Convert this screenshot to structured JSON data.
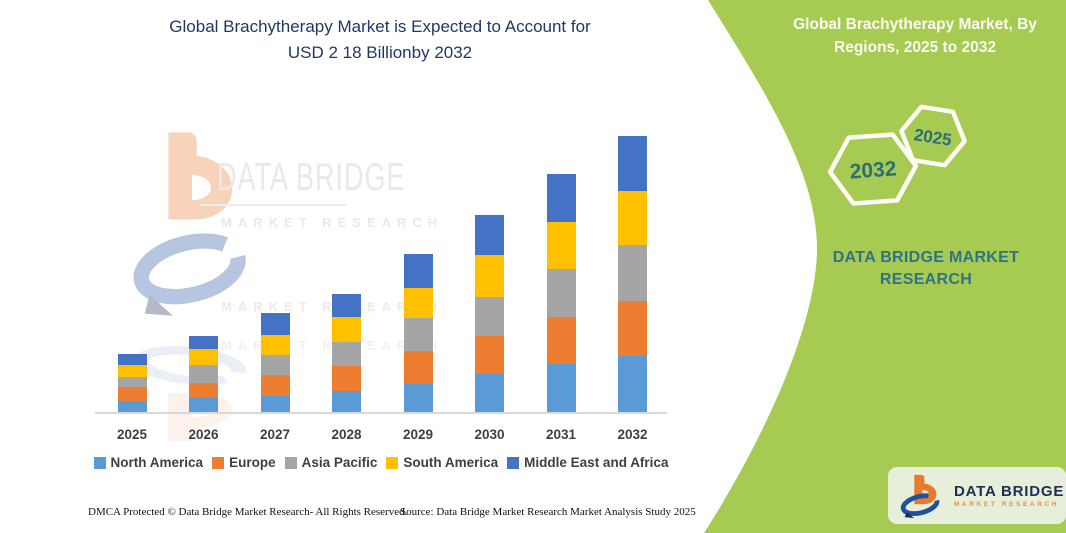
{
  "left": {
    "title_line1": "Global Brachytherapy Market is Expected to Account for",
    "title_line2": "USD 2 18 Billionby 2032",
    "footer_left": "DMCA Protected © Data Bridge Market Research- All Rights Reserved.",
    "footer_right": "Source: Data Bridge Market Research Market Analysis Study 2025"
  },
  "watermark": {
    "brand": "DATA BRIDGE",
    "sub": "MARKET RESEARCH",
    "reflect_row": "MARKET RESEARCH"
  },
  "chart_data": {
    "type": "bar",
    "stacked": true,
    "title": "Global Brachytherapy Market is Expected to Account for USD 2 18 Billionby 2032",
    "unit": "USD Billion",
    "xlabel": "",
    "ylabel": "",
    "ylim": [
      0,
      2.3
    ],
    "grid": false,
    "legend_position": "bottom",
    "categories": [
      "2025",
      "2026",
      "2027",
      "2028",
      "2029",
      "2030",
      "2031",
      "2032"
    ],
    "series": [
      {
        "name": "North America",
        "color": "#5B9BD5",
        "values": [
          0.09,
          0.12,
          0.13,
          0.17,
          0.22,
          0.3,
          0.38,
          0.44
        ]
      },
      {
        "name": "Europe",
        "color": "#ED7D31",
        "values": [
          0.11,
          0.11,
          0.16,
          0.19,
          0.26,
          0.3,
          0.37,
          0.44
        ]
      },
      {
        "name": "Asia Pacific",
        "color": "#A5A5A5",
        "values": [
          0.08,
          0.14,
          0.16,
          0.19,
          0.26,
          0.31,
          0.38,
          0.44
        ]
      },
      {
        "name": "South America",
        "color": "#FFC000",
        "values": [
          0.09,
          0.13,
          0.16,
          0.2,
          0.24,
          0.33,
          0.37,
          0.43
        ]
      },
      {
        "name": "Middle East and Africa",
        "color": "#4472C4",
        "values": [
          0.09,
          0.1,
          0.17,
          0.18,
          0.27,
          0.32,
          0.38,
          0.43
        ]
      }
    ],
    "totals": [
      0.46,
      0.6,
      0.78,
      0.93,
      1.25,
      1.56,
      1.88,
      2.18
    ]
  },
  "panel": {
    "heading": "Global Brachytherapy Market, By Regions, 2025 to 2032",
    "hex_large_label": "2032",
    "hex_small_label": "2025",
    "brand_text": "DATA BRIDGE MARKET RESEARCH",
    "bg_color": "#A7CA52",
    "text_color": "#2F7386"
  },
  "logo_card": {
    "brand": "DATA BRIDGE",
    "sub": "MARKET RESEARCH"
  }
}
